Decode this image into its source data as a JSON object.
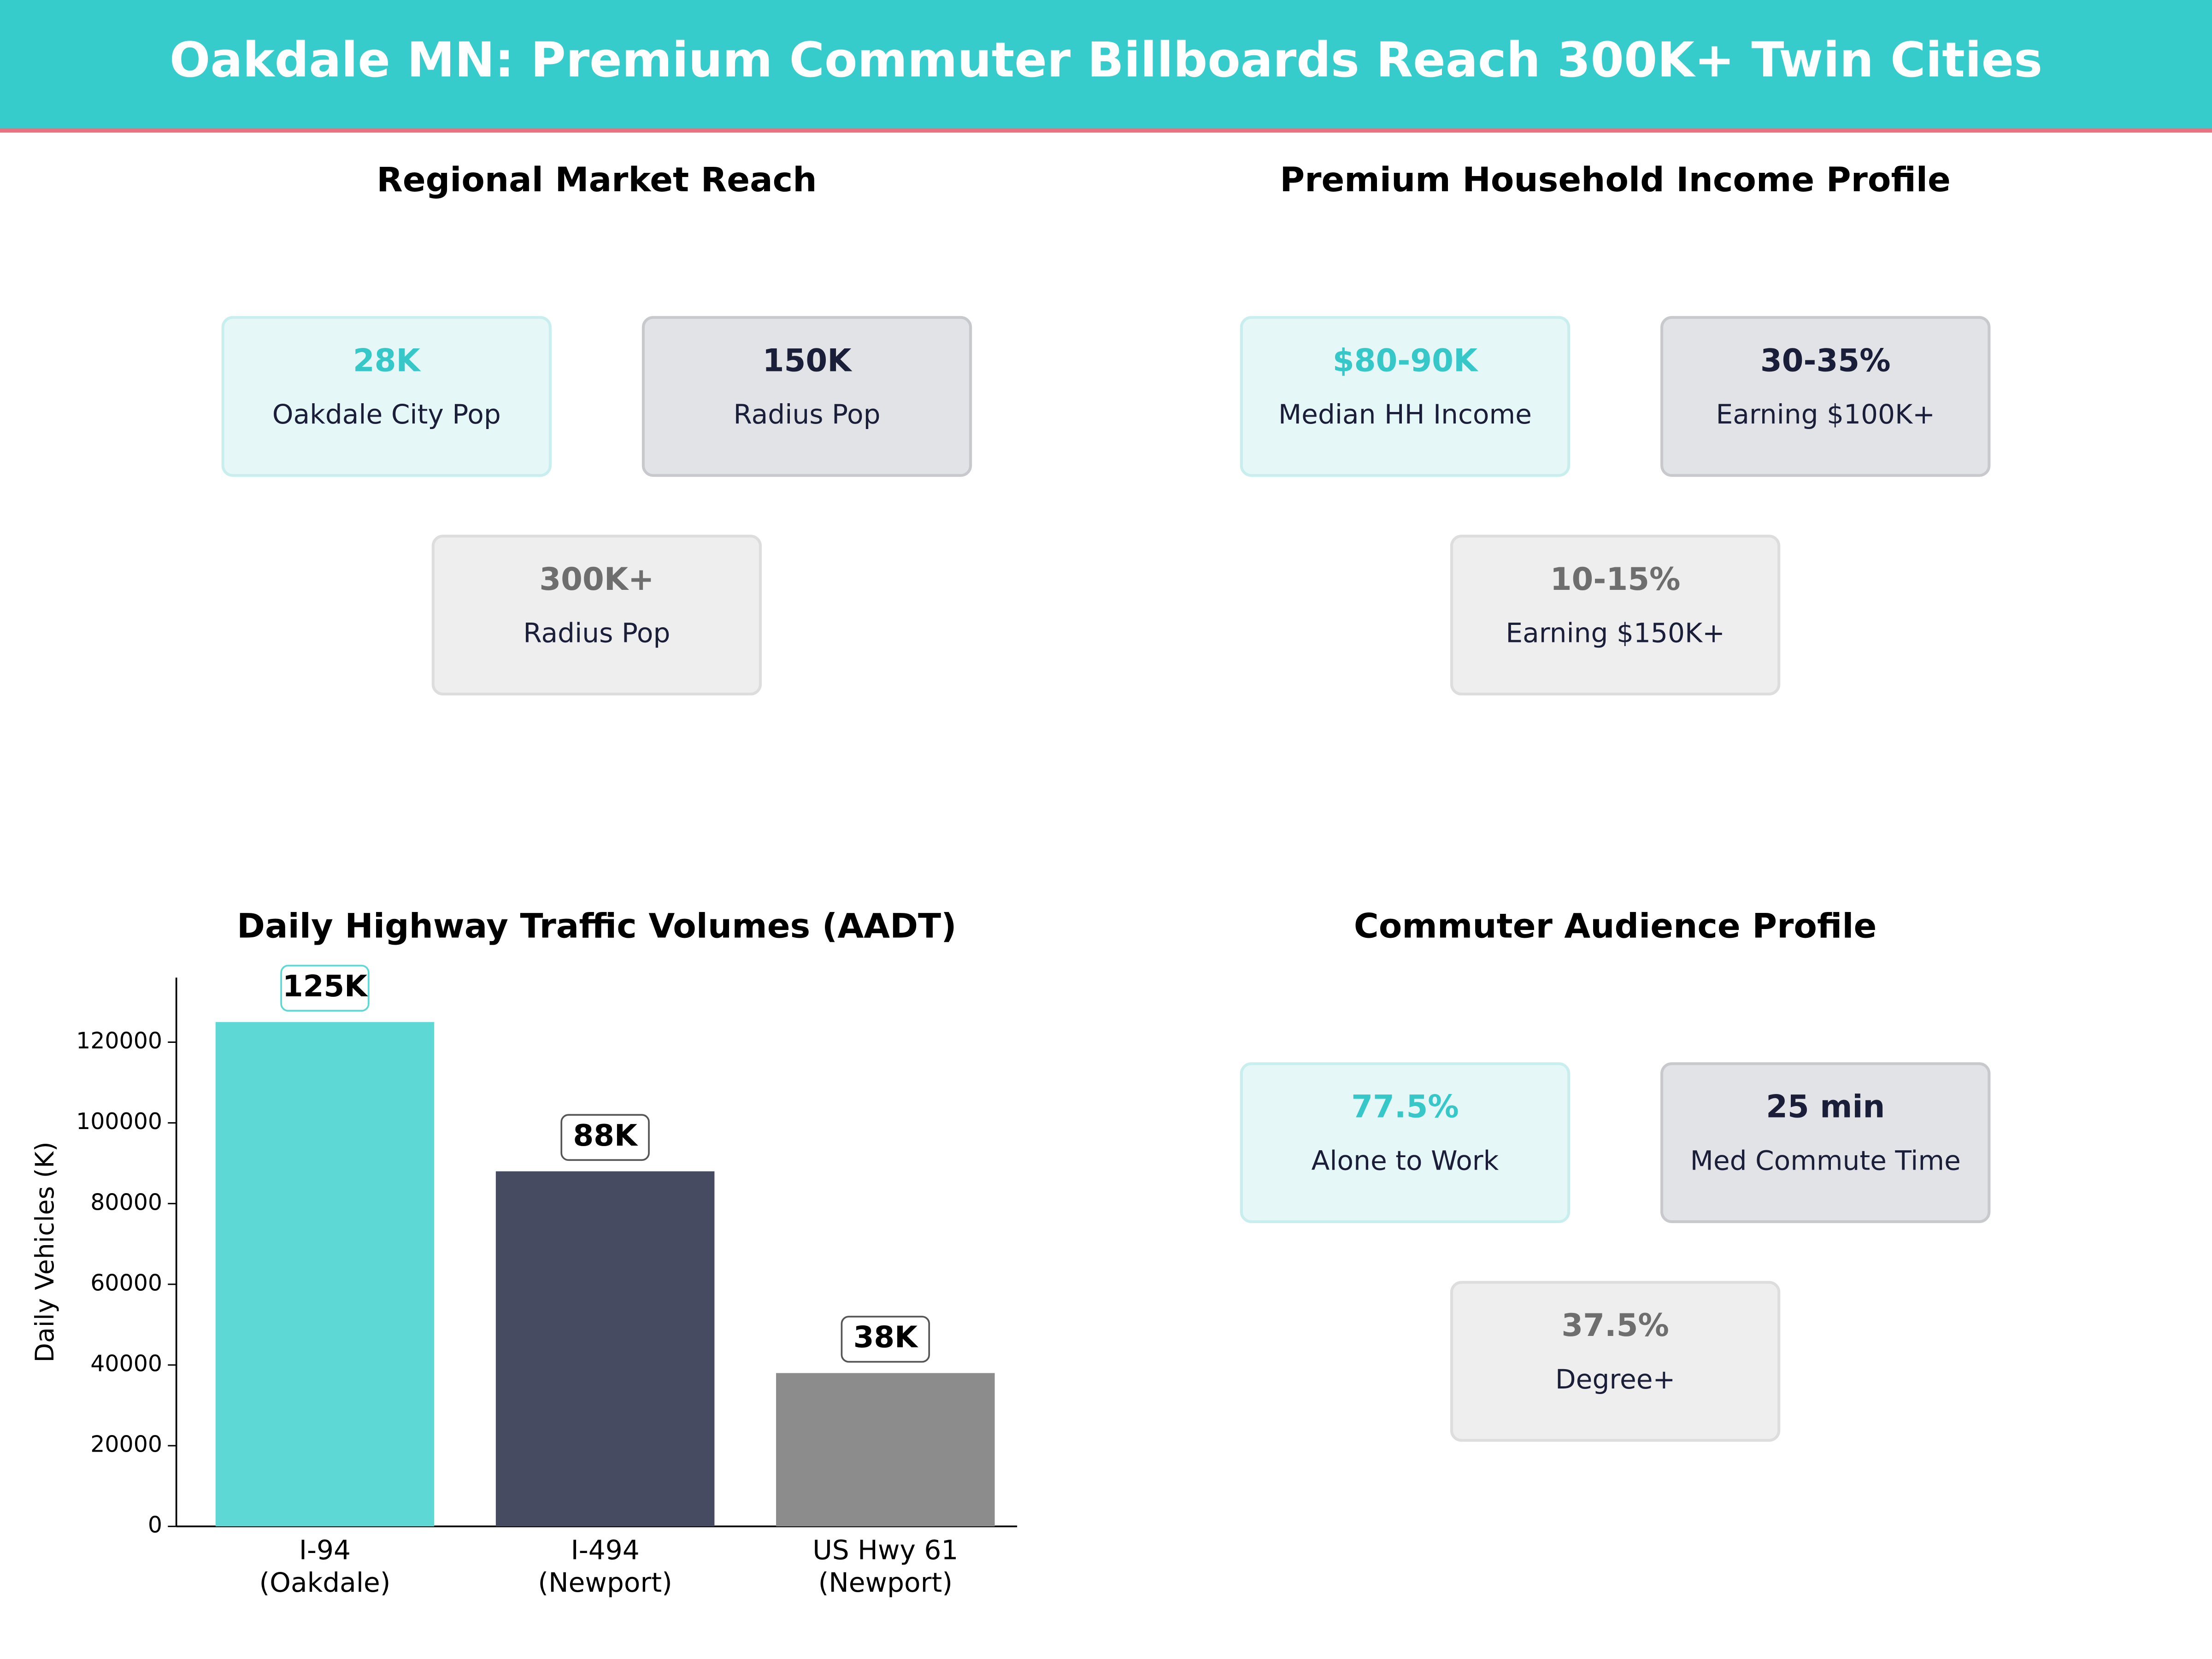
{
  "header": {
    "title": "Oakdale MN: Premium Commuter Billboards Reach 300K+ Twin Cities"
  },
  "panels": [
    {
      "title": "Regional Market Reach",
      "cards": [
        {
          "value": "28K",
          "label": "Oakdale City Pop"
        },
        {
          "value": "150K",
          "label": "Radius Pop"
        },
        {
          "value": "300K+",
          "label": "Radius Pop"
        }
      ]
    },
    {
      "title": "Premium Household Income Profile",
      "cards": [
        {
          "value": "$80-90K",
          "label": "Median HH Income"
        },
        {
          "value": "30-35%",
          "label": "Earning $100K+"
        },
        {
          "value": "10-15%",
          "label": "Earning $150K+"
        }
      ]
    },
    {
      "title": "Commuter Audience Profile",
      "cards": [
        {
          "value": "77.5%",
          "label": "Alone to Work"
        },
        {
          "value": "25 min",
          "label": "Med Commute Time"
        },
        {
          "value": "37.5%",
          "label": "Degree+"
        }
      ]
    }
  ],
  "chart_data": {
    "type": "bar",
    "title": "Daily Highway Traffic Volumes (AADT)",
    "y_label": "Daily Vehicles (K)",
    "categories": [
      [
        "I-94",
        "(Oakdale)"
      ],
      [
        "I-494",
        "(Newport)"
      ],
      [
        "US Hwy 61",
        "(Newport)"
      ]
    ],
    "values": [
      125000,
      88000,
      38000
    ],
    "value_labels": [
      "125K",
      "88K",
      "38K"
    ],
    "colors": [
      "#5dd8d5",
      "#474b62",
      "#8c8c8c"
    ],
    "ylim": [
      0,
      136000
    ],
    "yticks": [
      0,
      20000,
      40000,
      60000,
      80000,
      100000,
      120000
    ]
  }
}
